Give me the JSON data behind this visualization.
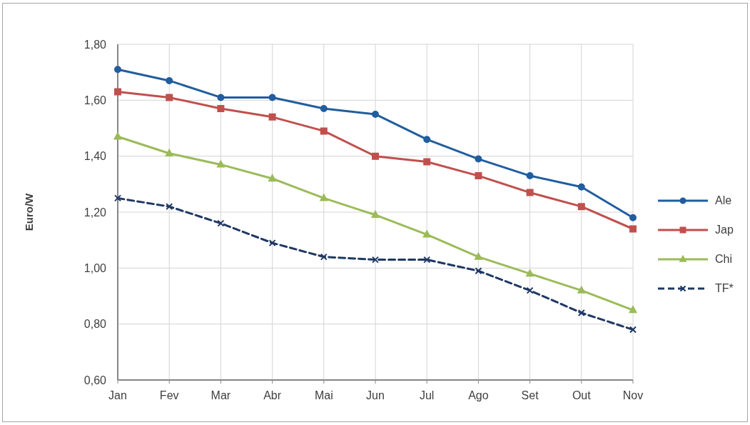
{
  "chart_data": {
    "type": "line",
    "ylabel": "Euro/W",
    "categories": [
      "Jan",
      "Fev",
      "Mar",
      "Abr",
      "Mai",
      "Jun",
      "Jul",
      "Ago",
      "Set",
      "Out",
      "Nov"
    ],
    "series": [
      {
        "name": "Ale",
        "color": "#215d9f",
        "marker": "circle",
        "line_style": "solid",
        "values": [
          1.71,
          1.67,
          1.61,
          1.61,
          1.57,
          1.55,
          1.46,
          1.39,
          1.33,
          1.29,
          1.18
        ]
      },
      {
        "name": "Jap",
        "color": "#c0504d",
        "marker": "square",
        "line_style": "solid",
        "values": [
          1.63,
          1.61,
          1.57,
          1.54,
          1.49,
          1.4,
          1.38,
          1.33,
          1.27,
          1.22,
          1.14
        ]
      },
      {
        "name": "Chi",
        "color": "#9bbb59",
        "marker": "triangle",
        "line_style": "solid",
        "values": [
          1.47,
          1.41,
          1.37,
          1.32,
          1.25,
          1.19,
          1.12,
          1.04,
          0.98,
          0.92,
          0.85
        ]
      },
      {
        "name": "TF*",
        "color": "#1f3864",
        "marker": "cross",
        "line_style": "dashed",
        "values": [
          1.25,
          1.22,
          1.16,
          1.09,
          1.04,
          1.03,
          1.03,
          0.99,
          0.92,
          0.84,
          0.78
        ]
      }
    ],
    "ylim": [
      0.6,
      1.8
    ],
    "yticks": [
      {
        "value": 0.6,
        "label": "0,60"
      },
      {
        "value": 0.8,
        "label": "0,80"
      },
      {
        "value": 1.0,
        "label": "1,00"
      },
      {
        "value": 1.2,
        "label": "1,20"
      },
      {
        "value": 1.4,
        "label": "1,40"
      },
      {
        "value": 1.6,
        "label": "1,60"
      },
      {
        "value": 1.8,
        "label": "1,80"
      }
    ],
    "grid": true,
    "legend": "right"
  }
}
